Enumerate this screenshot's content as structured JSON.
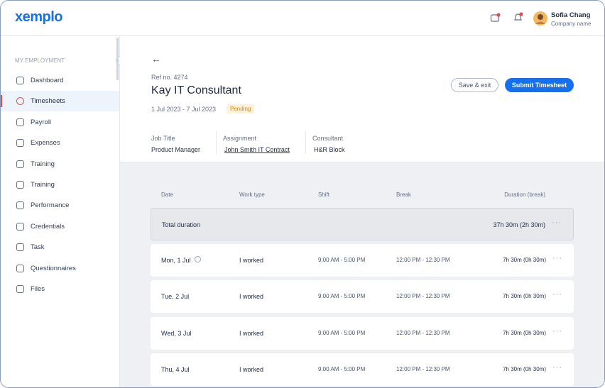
{
  "header": {
    "logo": "xemplo",
    "user_name": "Sofia Chang",
    "user_role": "Company name"
  },
  "sidebar": {
    "section": "MY EMPLOYMENT",
    "items": [
      "Dashboard",
      "Timesheets",
      "Payroll",
      "Expenses",
      "Training",
      "Training",
      "Performance",
      "Credentials",
      "Task",
      "Questionnaires",
      "Files"
    ]
  },
  "timesheet": {
    "ref": "Ref no. 4274",
    "title": "Kay IT Consultant",
    "dates": "1 Jul 2023 - 7 Jul 2023",
    "status": "Pending",
    "actions": [
      "Save & exit",
      "Submit Timesheet"
    ],
    "details": [
      {
        "label": "Job Title",
        "value": "Product Manager"
      },
      {
        "label": "Assignment",
        "value": "John Smith IT Contract"
      },
      {
        "label": "Consultant",
        "value": "H&R Block"
      }
    ]
  },
  "table": {
    "columns": [
      "Date",
      "Work type",
      "Shift",
      "Break",
      "Duration (break)"
    ],
    "total": {
      "label": "Total duration",
      "duration": "37h 30m (2h 30m)"
    },
    "rows": [
      [
        "Mon, 1 Jul",
        "I worked",
        "9:00 AM - 5:00 PM",
        "12:00 PM - 12:30 PM",
        "7h 30m (0h 30m)"
      ],
      [
        "Tue, 2 Jul",
        "I worked",
        "9:00 AM - 5:00 PM",
        "12:00 PM - 12:30 PM",
        "7h 30m (0h 30m)"
      ],
      [
        "Wed, 3 Jul",
        "I worked",
        "9:00 AM - 5:00 PM",
        "12:00 PM - 12:30 PM",
        "7h 30m (0h 30m)"
      ],
      [
        "Thu, 4 Jul",
        "I worked",
        "9:00 AM - 5:00 PM",
        "12:00 PM - 12:30 PM",
        "7h 30m (0h 30m)"
      ]
    ]
  }
}
